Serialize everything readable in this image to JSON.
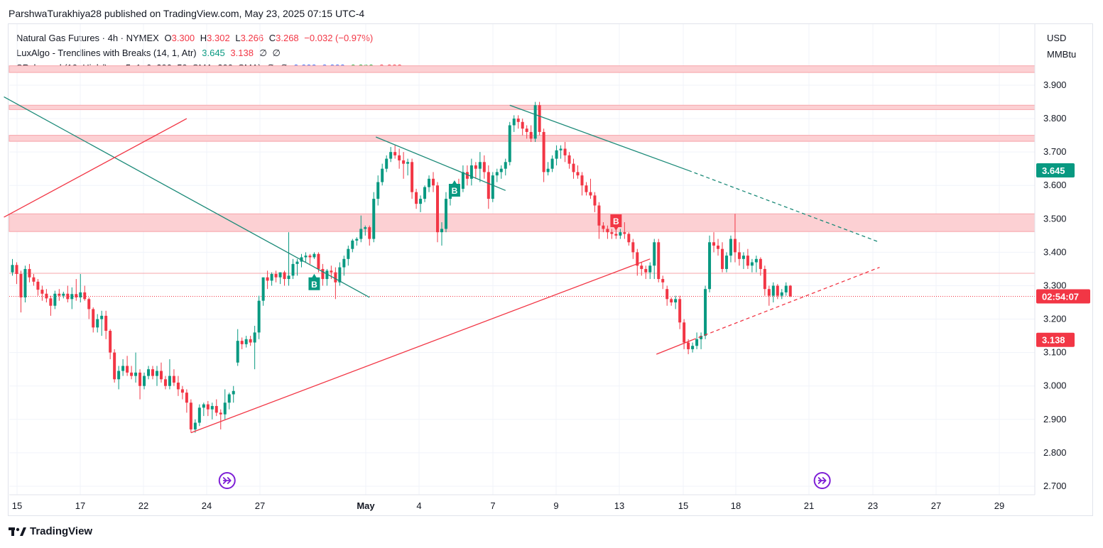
{
  "header": {
    "publisher": "ParshwaTurakhiya28 published on TradingView.com, May 23, 2025 07:15 UTC-4"
  },
  "legend": {
    "symbol": "Natural Gas Futures · 4h · NYMEX",
    "o_label": "O",
    "o_value": "3.300",
    "h_label": "H",
    "h_value": "3.302",
    "l_label": "L",
    "l_value": "3.266",
    "c_label": "C",
    "c_value": "3.268",
    "change": "−0.032 (−0.97%)",
    "indicator1": "LuxAlgo - Trendlines with Breaks (14, 1, Atr)",
    "ind1_v1": "3.645",
    "ind1_v2": "3.138",
    "ind1_v3": "∅",
    "ind1_v4": "∅",
    "indicator2": "SRchannel (10, High/Low, 5, 1, 6, 290, 50, SMA, 200, SMA)",
    "ind2_v1": "∅",
    "ind2_v2": "∅",
    "ind2_v3": "0.000",
    "ind2_v4": "0.000",
    "ind2_v5": "0.000",
    "ind2_v6": "0.000"
  },
  "units": {
    "currency": "USD",
    "unit": "MMBtu"
  },
  "footer": {
    "brand": "TradingView"
  },
  "colors": {
    "up": "#089981",
    "down": "#f23645",
    "sr_fill": "#fcd0d3",
    "sr_line": "#f7a4aa",
    "grid": "#f0f3fa",
    "axis_text": "#131722",
    "trend_teal": "#1b8a78",
    "trend_red": "#f23645",
    "event_purple": "#7e1fd6"
  },
  "chart_data": {
    "type": "candlestick",
    "ylim": [
      2.66,
      3.98
    ],
    "y_ticks": [
      "2.700",
      "2.800",
      "2.900",
      "3.000",
      "3.100",
      "3.200",
      "3.300",
      "3.400",
      "3.500",
      "3.600",
      "3.700",
      "3.800",
      "3.900"
    ],
    "x_labels": [
      "15",
      "17",
      "22",
      "24",
      "27",
      "May",
      "4",
      "7",
      "9",
      "13",
      "15",
      "18",
      "21",
      "23",
      "27",
      "29"
    ],
    "price_labels": [
      {
        "text": "3.645",
        "value": 3.645,
        "color": "#089981"
      },
      {
        "text": "02:54:07",
        "value": 3.268,
        "color": "#f23645"
      },
      {
        "text": "3.138",
        "value": 3.138,
        "color": "#f23645"
      }
    ],
    "sr_zones": [
      [
        3.938,
        3.958
      ],
      [
        3.827,
        3.84
      ],
      [
        3.732,
        3.75
      ],
      [
        3.462,
        3.515
      ]
    ],
    "sr_lines": [
      3.337
    ],
    "last_price": 3.268,
    "breaks": [
      {
        "label": "B",
        "type": "bull",
        "index": 71,
        "value": 3.31
      },
      {
        "label": "B",
        "type": "bull",
        "index": 104,
        "value": 3.59
      },
      {
        "label": "B",
        "type": "bear",
        "index": 142,
        "value": 3.49
      }
    ],
    "trendlines": [
      {
        "color": "teal",
        "style": "solid",
        "from": [
          -2,
          3.865
        ],
        "to": [
          84,
          3.265
        ]
      },
      {
        "color": "teal",
        "style": "solid",
        "from": [
          85.5,
          3.745
        ],
        "to": [
          116,
          3.585
        ]
      },
      {
        "color": "teal",
        "style": "solid",
        "from": [
          117,
          3.84
        ],
        "to": [
          159,
          3.645
        ]
      },
      {
        "color": "teal",
        "style": "dashed",
        "from": [
          159,
          3.645
        ],
        "to": [
          204,
          3.43
        ]
      },
      {
        "color": "red",
        "style": "solid",
        "from": [
          -2,
          3.505
        ],
        "to": [
          41,
          3.8
        ]
      },
      {
        "color": "red",
        "style": "solid",
        "from": [
          42,
          2.86
        ],
        "to": [
          150,
          3.38
        ]
      },
      {
        "color": "red",
        "style": "solid",
        "from": [
          151.5,
          3.095
        ],
        "to": [
          160,
          3.138
        ]
      },
      {
        "color": "red",
        "style": "dashed",
        "from": [
          160,
          3.138
        ],
        "to": [
          204,
          3.355
        ]
      }
    ],
    "events": [
      50.5,
      190.5
    ],
    "candles": [
      [
        3.34,
        3.38,
        3.33,
        3.362
      ],
      [
        3.362,
        3.37,
        3.305,
        3.335
      ],
      [
        3.335,
        3.345,
        3.22,
        3.265
      ],
      [
        3.265,
        3.36,
        3.25,
        3.35
      ],
      [
        3.35,
        3.365,
        3.31,
        3.325
      ],
      [
        3.325,
        3.335,
        3.3,
        3.312
      ],
      [
        3.312,
        3.32,
        3.27,
        3.288
      ],
      [
        3.288,
        3.3,
        3.255,
        3.276
      ],
      [
        3.276,
        3.29,
        3.25,
        3.262
      ],
      [
        3.262,
        3.27,
        3.21,
        3.24
      ],
      [
        3.24,
        3.285,
        3.23,
        3.276
      ],
      [
        3.276,
        3.29,
        3.255,
        3.27
      ],
      [
        3.27,
        3.282,
        3.262,
        3.276
      ],
      [
        3.276,
        3.3,
        3.25,
        3.26
      ],
      [
        3.26,
        3.295,
        3.23,
        3.275
      ],
      [
        3.275,
        3.32,
        3.255,
        3.265
      ],
      [
        3.265,
        3.335,
        3.25,
        3.28
      ],
      [
        3.28,
        3.3,
        3.255,
        3.26
      ],
      [
        3.26,
        3.265,
        3.2,
        3.23
      ],
      [
        3.23,
        3.235,
        3.16,
        3.175
      ],
      [
        3.175,
        3.215,
        3.16,
        3.2
      ],
      [
        3.2,
        3.225,
        3.15,
        3.21
      ],
      [
        3.21,
        3.225,
        3.14,
        3.165
      ],
      [
        3.165,
        3.17,
        3.08,
        3.1
      ],
      [
        3.1,
        3.11,
        3.01,
        3.02
      ],
      [
        3.02,
        3.06,
        2.99,
        3.045
      ],
      [
        3.045,
        3.08,
        3.03,
        3.06
      ],
      [
        3.06,
        3.09,
        3.03,
        3.04
      ],
      [
        3.04,
        3.06,
        3.02,
        3.03
      ],
      [
        3.03,
        3.1,
        3.01,
        3.04
      ],
      [
        3.04,
        3.05,
        2.96,
        3.0
      ],
      [
        3.0,
        3.04,
        2.99,
        3.03
      ],
      [
        3.03,
        3.06,
        3.02,
        3.05
      ],
      [
        3.05,
        3.06,
        3.02,
        3.03
      ],
      [
        3.03,
        3.06,
        3.0,
        3.045
      ],
      [
        3.045,
        3.07,
        3.01,
        3.02
      ],
      [
        3.02,
        3.03,
        2.99,
        3.0
      ],
      [
        3.0,
        3.08,
        2.99,
        3.03
      ],
      [
        3.03,
        3.05,
        3.0,
        3.01
      ],
      [
        3.01,
        3.03,
        2.97,
        2.99
      ],
      [
        2.99,
        3.0,
        2.96,
        2.98
      ],
      [
        2.98,
        2.99,
        2.92,
        2.95
      ],
      [
        2.95,
        2.96,
        2.86,
        2.87
      ],
      [
        2.87,
        2.9,
        2.86,
        2.89
      ],
      [
        2.89,
        2.945,
        2.88,
        2.935
      ],
      [
        2.935,
        2.95,
        2.91,
        2.945
      ],
      [
        2.945,
        2.955,
        2.91,
        2.93
      ],
      [
        2.93,
        2.95,
        2.9,
        2.94
      ],
      [
        2.94,
        2.96,
        2.91,
        2.92
      ],
      [
        2.92,
        2.93,
        2.87,
        2.915
      ],
      [
        2.915,
        2.99,
        2.9,
        2.95
      ],
      [
        2.95,
        2.98,
        2.93,
        2.975
      ],
      [
        2.975,
        3.0,
        2.95,
        2.985
      ],
      [
        3.07,
        3.17,
        3.06,
        3.135
      ],
      [
        3.135,
        3.145,
        3.11,
        3.125
      ],
      [
        3.125,
        3.15,
        3.115,
        3.14
      ],
      [
        3.14,
        3.15,
        3.12,
        3.13
      ],
      [
        3.13,
        3.18,
        3.05,
        3.16
      ],
      [
        3.16,
        3.27,
        3.14,
        3.255
      ],
      [
        3.255,
        3.32,
        3.24,
        3.325
      ],
      [
        3.325,
        3.345,
        3.29,
        3.315
      ],
      [
        3.315,
        3.34,
        3.3,
        3.335
      ],
      [
        3.335,
        3.345,
        3.31,
        3.325
      ],
      [
        3.325,
        3.34,
        3.305,
        3.34
      ],
      [
        3.34,
        3.345,
        3.3,
        3.32
      ],
      [
        3.32,
        3.46,
        3.3,
        3.33
      ],
      [
        3.33,
        3.38,
        3.32,
        3.365
      ],
      [
        3.365,
        3.38,
        3.33,
        3.372
      ],
      [
        3.372,
        3.395,
        3.355,
        3.385
      ],
      [
        3.385,
        3.4,
        3.37,
        3.39
      ],
      [
        3.39,
        3.395,
        3.365,
        3.385
      ],
      [
        3.385,
        3.4,
        3.38,
        3.395
      ],
      [
        3.395,
        3.4,
        3.34,
        3.35
      ],
      [
        3.35,
        3.365,
        3.3,
        3.32
      ],
      [
        3.32,
        3.35,
        3.3,
        3.345
      ],
      [
        3.345,
        3.36,
        3.32,
        3.34
      ],
      [
        3.34,
        3.355,
        3.26,
        3.31
      ],
      [
        3.31,
        3.37,
        3.3,
        3.355
      ],
      [
        3.355,
        3.39,
        3.33,
        3.38
      ],
      [
        3.38,
        3.42,
        3.36,
        3.41
      ],
      [
        3.41,
        3.44,
        3.4,
        3.435
      ],
      [
        3.435,
        3.445,
        3.42,
        3.44
      ],
      [
        3.44,
        3.51,
        3.43,
        3.47
      ],
      [
        3.47,
        3.48,
        3.45,
        3.475
      ],
      [
        3.475,
        3.48,
        3.42,
        3.44
      ],
      [
        3.44,
        3.58,
        3.43,
        3.56
      ],
      [
        3.56,
        3.63,
        3.54,
        3.61
      ],
      [
        3.61,
        3.665,
        3.6,
        3.65
      ],
      [
        3.65,
        3.69,
        3.64,
        3.68
      ],
      [
        3.68,
        3.715,
        3.67,
        3.7
      ],
      [
        3.7,
        3.72,
        3.68,
        3.69
      ],
      [
        3.69,
        3.71,
        3.65,
        3.675
      ],
      [
        3.675,
        3.7,
        3.62,
        3.665
      ],
      [
        3.665,
        3.68,
        3.63,
        3.67
      ],
      [
        3.67,
        3.68,
        3.56,
        3.58
      ],
      [
        3.58,
        3.59,
        3.53,
        3.545
      ],
      [
        3.545,
        3.57,
        3.52,
        3.56
      ],
      [
        3.56,
        3.6,
        3.55,
        3.595
      ],
      [
        3.595,
        3.63,
        3.58,
        3.62
      ],
      [
        3.62,
        3.64,
        3.58,
        3.6
      ],
      [
        3.6,
        3.61,
        3.43,
        3.46
      ],
      [
        3.46,
        3.49,
        3.42,
        3.47
      ],
      [
        3.47,
        3.58,
        3.46,
        3.56
      ],
      [
        3.56,
        3.6,
        3.54,
        3.59
      ],
      [
        3.59,
        3.61,
        3.57,
        3.6
      ],
      [
        3.6,
        3.62,
        3.58,
        3.59
      ],
      [
        3.59,
        3.66,
        3.58,
        3.64
      ],
      [
        3.64,
        3.66,
        3.6,
        3.62
      ],
      [
        3.62,
        3.68,
        3.6,
        3.66
      ],
      [
        3.66,
        3.67,
        3.62,
        3.65
      ],
      [
        3.65,
        3.7,
        3.61,
        3.67
      ],
      [
        3.67,
        3.69,
        3.62,
        3.64
      ],
      [
        3.64,
        3.66,
        3.53,
        3.56
      ],
      [
        3.56,
        3.64,
        3.55,
        3.63
      ],
      [
        3.63,
        3.65,
        3.61,
        3.64
      ],
      [
        3.64,
        3.66,
        3.62,
        3.65
      ],
      [
        3.65,
        3.68,
        3.63,
        3.67
      ],
      [
        3.67,
        3.79,
        3.66,
        3.78
      ],
      [
        3.78,
        3.81,
        3.76,
        3.8
      ],
      [
        3.8,
        3.81,
        3.77,
        3.79
      ],
      [
        3.79,
        3.8,
        3.75,
        3.77
      ],
      [
        3.77,
        3.78,
        3.74,
        3.76
      ],
      [
        3.76,
        3.78,
        3.73,
        3.74
      ],
      [
        3.74,
        3.85,
        3.73,
        3.84
      ],
      [
        3.84,
        3.85,
        3.75,
        3.76
      ],
      [
        3.76,
        3.77,
        3.61,
        3.64
      ],
      [
        3.64,
        3.67,
        3.63,
        3.65
      ],
      [
        3.65,
        3.69,
        3.64,
        3.68
      ],
      [
        3.68,
        3.72,
        3.66,
        3.705
      ],
      [
        3.705,
        3.72,
        3.68,
        3.71
      ],
      [
        3.71,
        3.73,
        3.67,
        3.69
      ],
      [
        3.69,
        3.7,
        3.65,
        3.665
      ],
      [
        3.665,
        3.68,
        3.62,
        3.64
      ],
      [
        3.64,
        3.66,
        3.62,
        3.63
      ],
      [
        3.63,
        3.64,
        3.57,
        3.6
      ],
      [
        3.6,
        3.61,
        3.57,
        3.58
      ],
      [
        3.58,
        3.62,
        3.56,
        3.57
      ],
      [
        3.57,
        3.58,
        3.52,
        3.54
      ],
      [
        3.54,
        3.55,
        3.44,
        3.48
      ],
      [
        3.48,
        3.49,
        3.46,
        3.47
      ],
      [
        3.47,
        3.48,
        3.44,
        3.46
      ],
      [
        3.46,
        3.47,
        3.44,
        3.455
      ],
      [
        3.455,
        3.48,
        3.44,
        3.45
      ],
      [
        3.45,
        3.47,
        3.44,
        3.46
      ],
      [
        3.46,
        3.49,
        3.44,
        3.455
      ],
      [
        3.455,
        3.46,
        3.42,
        3.43
      ],
      [
        3.43,
        3.44,
        3.38,
        3.4
      ],
      [
        3.4,
        3.41,
        3.33,
        3.36
      ],
      [
        3.36,
        3.37,
        3.33,
        3.35
      ],
      [
        3.35,
        3.36,
        3.32,
        3.34
      ],
      [
        3.34,
        3.37,
        3.32,
        3.36
      ],
      [
        3.36,
        3.44,
        3.32,
        3.43
      ],
      [
        3.43,
        3.44,
        3.31,
        3.32
      ],
      [
        3.32,
        3.33,
        3.29,
        3.31
      ],
      [
        3.29,
        3.3,
        3.24,
        3.26
      ],
      [
        3.26,
        3.265,
        3.24,
        3.25
      ],
      [
        3.25,
        3.27,
        3.23,
        3.26
      ],
      [
        3.26,
        3.27,
        3.17,
        3.19
      ],
      [
        3.19,
        3.2,
        3.11,
        3.13
      ],
      [
        3.13,
        3.14,
        3.095,
        3.11
      ],
      [
        3.11,
        3.13,
        3.1,
        3.12
      ],
      [
        3.12,
        3.16,
        3.11,
        3.14
      ],
      [
        3.14,
        3.16,
        3.11,
        3.15
      ],
      [
        3.15,
        3.3,
        3.14,
        3.29
      ],
      [
        3.29,
        3.45,
        3.28,
        3.43
      ],
      [
        3.43,
        3.46,
        3.4,
        3.42
      ],
      [
        3.42,
        3.44,
        3.39,
        3.41
      ],
      [
        3.41,
        3.43,
        3.34,
        3.35
      ],
      [
        3.35,
        3.4,
        3.34,
        3.39
      ],
      [
        3.39,
        3.45,
        3.37,
        3.44
      ],
      [
        3.44,
        3.515,
        3.37,
        3.4
      ],
      [
        3.4,
        3.43,
        3.36,
        3.38
      ],
      [
        3.38,
        3.4,
        3.35,
        3.39
      ],
      [
        3.39,
        3.41,
        3.35,
        3.36
      ],
      [
        3.36,
        3.38,
        3.34,
        3.37
      ],
      [
        3.37,
        3.39,
        3.34,
        3.38
      ],
      [
        3.38,
        3.385,
        3.33,
        3.35
      ],
      [
        3.35,
        3.36,
        3.27,
        3.29
      ],
      [
        3.29,
        3.3,
        3.24,
        3.27
      ],
      [
        3.27,
        3.31,
        3.25,
        3.3
      ],
      [
        3.3,
        3.305,
        3.26,
        3.27
      ],
      [
        3.27,
        3.29,
        3.26,
        3.28
      ],
      [
        3.28,
        3.31,
        3.27,
        3.3
      ],
      [
        3.3,
        3.302,
        3.266,
        3.268
      ]
    ]
  }
}
